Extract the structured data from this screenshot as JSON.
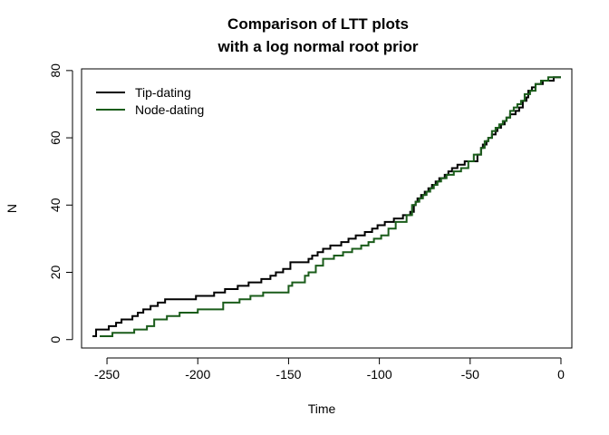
{
  "chart_data": {
    "type": "line",
    "title_line1": "Comparison of LTT plots",
    "title_line2": "with a log normal root prior",
    "xlabel": "Time",
    "ylabel": "N",
    "xlim": [
      -264,
      6
    ],
    "ylim": [
      -2.5,
      80.5
    ],
    "x_ticks": [
      -250,
      -200,
      -150,
      -100,
      -50,
      0
    ],
    "x_tick_labels": [
      "-250",
      "-200",
      "-150",
      "-100",
      "-50",
      "0"
    ],
    "y_ticks": [
      0,
      20,
      40,
      60,
      80
    ],
    "y_tick_labels": [
      "0",
      "20",
      "40",
      "60",
      "80"
    ],
    "legend_position": "top-left",
    "series": [
      {
        "name": "Tip-dating",
        "color": "#000000",
        "x": [
          -258,
          -256,
          -249,
          -245,
          -242,
          -236,
          -233,
          -230,
          -226,
          -222,
          -218,
          -201,
          -191,
          -185,
          -178,
          -172,
          -165,
          -160,
          -157,
          -153,
          -149,
          -139,
          -137,
          -134,
          -131,
          -127,
          -121,
          -117,
          -113,
          -108,
          -104,
          -101,
          -97,
          -92,
          -87,
          -83,
          -81,
          -80,
          -79,
          -77,
          -75,
          -73,
          -71,
          -69,
          -67,
          -64,
          -62,
          -60,
          -57,
          -53,
          -46,
          -44,
          -43,
          -41,
          -40,
          -38,
          -36,
          -35,
          -33,
          -31,
          -30,
          -28,
          -25,
          -23,
          -21,
          -19,
          -18,
          -16,
          -14,
          -10,
          -4,
          0
        ],
        "y": [
          1,
          3,
          4,
          5,
          6,
          7,
          8,
          9,
          10,
          11,
          12,
          13,
          14,
          15,
          16,
          17,
          18,
          19,
          20,
          21,
          23,
          24,
          25,
          26,
          27,
          28,
          29,
          30,
          31,
          32,
          33,
          34,
          35,
          36,
          37,
          38,
          40,
          41,
          42,
          43,
          44,
          45,
          46,
          47,
          48,
          49,
          50,
          51,
          52,
          53,
          55,
          57,
          58,
          59,
          60,
          61,
          62,
          63,
          64,
          65,
          66,
          67,
          68,
          69,
          71,
          72,
          74,
          75,
          76,
          77,
          78,
          78
        ]
      },
      {
        "name": "Node-dating",
        "color": "#1a5c1a",
        "x": [
          -254,
          -247,
          -235,
          -228,
          -224,
          -217,
          -210,
          -200,
          -186,
          -177,
          -171,
          -164,
          -150,
          -148,
          -141,
          -139,
          -135,
          -131,
          -125,
          -120,
          -115,
          -110,
          -106,
          -103,
          -99,
          -95,
          -91,
          -85,
          -82,
          -80,
          -78,
          -76,
          -74,
          -72,
          -70,
          -68,
          -66,
          -63,
          -59,
          -55,
          -51,
          -48,
          -44,
          -42,
          -40,
          -38,
          -36,
          -34,
          -32,
          -30,
          -28,
          -26,
          -24,
          -22,
          -20,
          -17,
          -14,
          -11,
          -7,
          -3,
          0
        ],
        "y": [
          1,
          2,
          3,
          4,
          6,
          7,
          8,
          9,
          11,
          12,
          13,
          14,
          16,
          17,
          19,
          20,
          22,
          24,
          25,
          26,
          27,
          28,
          29,
          30,
          31,
          33,
          35,
          37,
          40,
          41,
          42,
          43,
          44,
          45,
          46,
          47,
          48,
          49,
          50,
          51,
          53,
          55,
          57,
          59,
          60,
          62,
          63,
          64,
          65,
          66,
          68,
          69,
          70,
          71,
          73,
          74,
          76,
          77,
          78,
          78,
          78
        ]
      }
    ]
  }
}
